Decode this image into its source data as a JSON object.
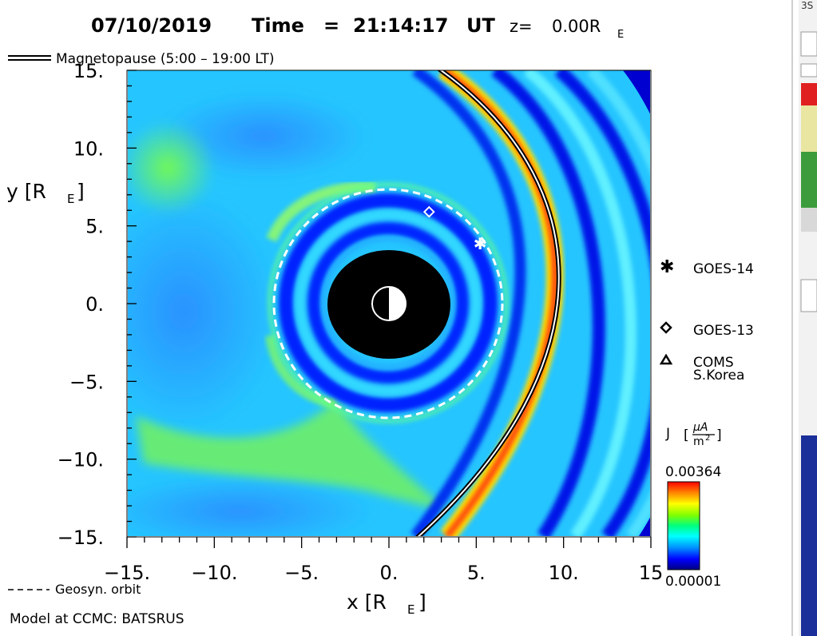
{
  "header": {
    "date": "07/10/2019",
    "time_label": "Time",
    "equals": "=",
    "time": "21:14:17",
    "ut": "UT",
    "z_label": "z=",
    "z_value": "0.00R",
    "z_sub": "E"
  },
  "legend_top": {
    "magnetopause": "Magnetopause (5:00 – 19:00 LT)"
  },
  "legend_bottom": {
    "geosyn": "Geosyn. orbit",
    "model": "Model at CCMC: BATSRUS"
  },
  "satellites": [
    {
      "name": "GOES-14",
      "symbol": "asterisk",
      "x": 5.2,
      "y": 3.9
    },
    {
      "name": "GOES-13",
      "symbol": "diamond",
      "x": 2.3,
      "y": 5.9
    },
    {
      "name": "COMS",
      "name2": "S.Korea",
      "symbol": "triangle"
    }
  ],
  "colorbar": {
    "label": "J",
    "unit_num": "µA",
    "unit_den": "m",
    "unit_exp": "2",
    "max": "0.00364",
    "min": "0.00001",
    "colors": [
      "#000080",
      "#0000ff",
      "#0090ff",
      "#00ffff",
      "#00ff80",
      "#80ff00",
      "#ffff00",
      "#ff8000",
      "#ff0000"
    ]
  },
  "chart_data": {
    "type": "heatmap",
    "title": "07/10/2019 Time = 21:14:17 UT z= 0.00RE",
    "xlabel": "x [R",
    "xlabel_sub": "E",
    "ylabel": "y [R",
    "ylabel_sub": "E",
    "xlim": [
      -15,
      15
    ],
    "ylim": [
      -15,
      15
    ],
    "x_ticks": [
      -15,
      -10,
      -5,
      0,
      5,
      10,
      15
    ],
    "y_ticks": [
      15,
      10,
      5,
      0,
      -5,
      -10,
      -15
    ],
    "x_tick_labels": [
      "−15.",
      "−10.",
      "−5.",
      "0.",
      "5.",
      "10.",
      "15"
    ],
    "y_tick_labels": [
      "15.",
      "10.",
      "5.",
      "0.",
      "−5.",
      "−10.",
      "−15."
    ],
    "value_range": [
      1e-05,
      0.00364
    ],
    "geosynchronous_orbit_radius": 6.6,
    "inner_boundary_radius": 3.5,
    "magnetopause_standoff_x": 10.7
  },
  "colors": {
    "background": "#ffffff",
    "field_base": "#20c8ff",
    "inner": "#000000",
    "orbit": "#ffffff"
  },
  "side_strip": {
    "fragment": "3S"
  }
}
